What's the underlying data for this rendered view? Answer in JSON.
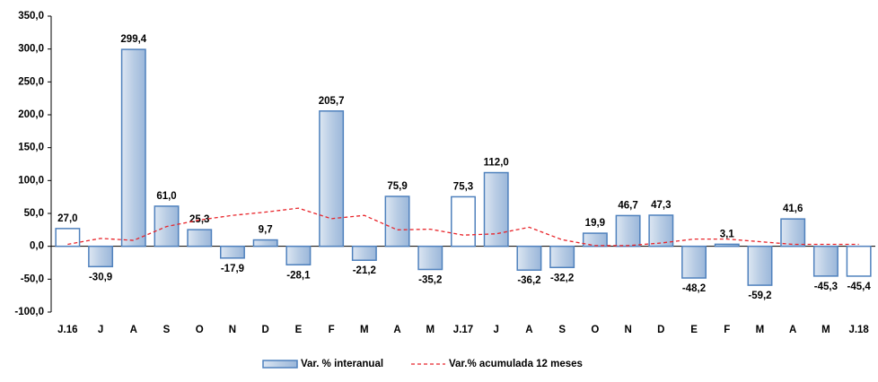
{
  "chart_data": {
    "type": "bar",
    "categories": [
      "J.16",
      "J",
      "A",
      "S",
      "O",
      "N",
      "D",
      "E",
      "F",
      "M",
      "A",
      "M",
      "J.17",
      "J",
      "A",
      "S",
      "O",
      "N",
      "D",
      "E",
      "F",
      "M",
      "A",
      "M",
      "J.18"
    ],
    "series": [
      {
        "name": "Var. % interanual",
        "type": "bar",
        "color": "#b8cce4",
        "edge_color": "#4f81bd",
        "point_colors": [
          "#ffffff",
          "#b8cce4",
          "#b8cce4",
          "#b8cce4",
          "#b8cce4",
          "#b8cce4",
          "#b8cce4",
          "#b8cce4",
          "#b8cce4",
          "#b8cce4",
          "#b8cce4",
          "#b8cce4",
          "#ffffff",
          "#b8cce4",
          "#b8cce4",
          "#b8cce4",
          "#b8cce4",
          "#b8cce4",
          "#b8cce4",
          "#b8cce4",
          "#b8cce4",
          "#b8cce4",
          "#b8cce4",
          "#b8cce4",
          "#ffffff"
        ],
        "values": [
          27.0,
          -30.9,
          299.4,
          61.0,
          25.3,
          -17.9,
          9.7,
          -28.1,
          205.7,
          -21.2,
          75.9,
          -35.2,
          75.3,
          112.0,
          -36.2,
          -32.2,
          19.9,
          46.7,
          47.3,
          -48.2,
          3.1,
          -59.2,
          41.6,
          -45.3,
          -45.4
        ],
        "value_labels": [
          "27,0",
          "-30,9",
          "299,4",
          "61,0",
          "25,3",
          "-17,9",
          "9,7",
          "-28,1",
          "205,7",
          "-21,2",
          "75,9",
          "-35,2",
          "75,3",
          "112,0",
          "-36,2",
          "-32,2",
          "19,9",
          "46,7",
          "47,3",
          "-48,2",
          "3,1",
          "-59,2",
          "41,6",
          "-45,3",
          "-45,4"
        ]
      },
      {
        "name": "Var.% acumulada 12 meses",
        "type": "line",
        "color": "#e8242a",
        "dashed": true,
        "values": [
          3,
          12,
          9,
          30,
          40,
          47,
          52,
          58,
          42,
          47,
          25,
          26,
          17,
          19,
          29,
          10,
          1,
          1,
          5,
          11,
          11,
          7,
          3,
          3,
          3
        ]
      }
    ],
    "ylim": [
      -100,
      350
    ],
    "yticks": [
      {
        "value": -100,
        "label": "-100,0"
      },
      {
        "value": -50,
        "label": "-50,0"
      },
      {
        "value": 0,
        "label": "0,0"
      },
      {
        "value": 50,
        "label": "50,0"
      },
      {
        "value": 100,
        "label": "100,0"
      },
      {
        "value": 150,
        "label": "150,0"
      },
      {
        "value": 200,
        "label": "200,0"
      },
      {
        "value": 250,
        "label": "250,0"
      },
      {
        "value": 300,
        "label": "300,0"
      },
      {
        "value": 350,
        "label": "350,0"
      }
    ],
    "grid": false,
    "legend": "bottom"
  }
}
